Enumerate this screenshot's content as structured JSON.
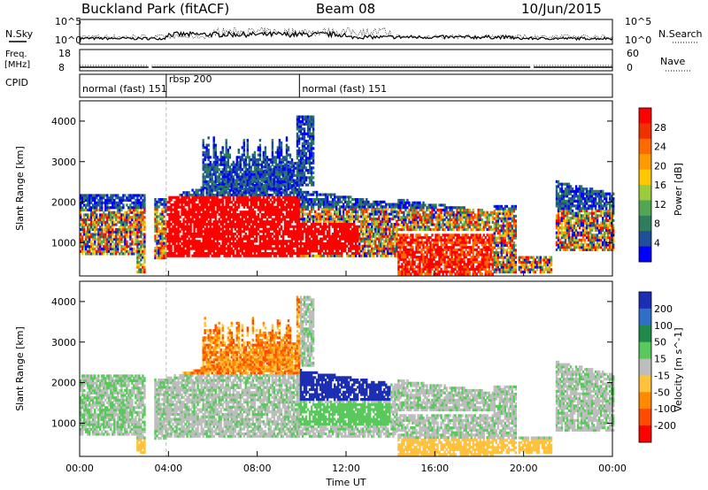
{
  "header": {
    "station": "Buckland Park (fitACF)",
    "beam": "Beam 08",
    "date": "10/Jun/2015"
  },
  "panels": {
    "nsky_label": "N.Sky",
    "nsearch_label": "N.Search",
    "freq_label_1": "Freq.",
    "freq_label_2": "[MHz]",
    "nave_label": "Nave",
    "cpid_label": "CPID"
  },
  "chart_data": [
    {
      "type": "line",
      "name": "noise",
      "left_axis": {
        "ticks": [
          "10^5",
          "10^0"
        ]
      },
      "right_axis": {
        "ticks": [
          "10^5",
          "10^0"
        ]
      }
    },
    {
      "type": "line",
      "name": "frequency",
      "left_axis": {
        "ticks": [
          "18",
          "8"
        ],
        "ylim": [
          8,
          18
        ]
      },
      "right_axis": {
        "ticks": [
          "60",
          "0"
        ],
        "ylim": [
          0,
          60
        ]
      }
    },
    {
      "type": "table",
      "name": "cpid",
      "segments": [
        {
          "label": "normal (fast) 151",
          "start_hour": 0.0,
          "end_hour": 3.9
        },
        {
          "label": "rbsp 200",
          "start_hour": 3.9,
          "end_hour": 9.9
        },
        {
          "label": "normal (fast) 151",
          "start_hour": 9.9,
          "end_hour": 24.0
        }
      ]
    },
    {
      "type": "heatmap",
      "name": "power",
      "ylabel": "Slant Range [km]",
      "yticks": [
        "4000",
        "3000",
        "2000",
        "1000"
      ],
      "ylim": [
        180,
        4500
      ],
      "colorbar": {
        "label": "Power [dB]",
        "ticks": [
          "28",
          "24",
          "20",
          "16",
          "12",
          "8",
          "4"
        ],
        "colors": [
          "#ff0000",
          "#f03000",
          "#ff6a00",
          "#ff9a00",
          "#ffc800",
          "#9ccb3c",
          "#52a852",
          "#2e7d5b",
          "#1f4f99",
          "#0000ff"
        ]
      }
    },
    {
      "type": "heatmap",
      "name": "velocity",
      "ylabel": "Slant Range [km]",
      "yticks": [
        "4000",
        "3000",
        "2000",
        "1000"
      ],
      "ylim": [
        180,
        4500
      ],
      "xlabel": "Time UT",
      "xticks": [
        "00:00",
        "04:00",
        "08:00",
        "12:00",
        "16:00",
        "20:00",
        "00:00"
      ],
      "xlim_hours": [
        0,
        24
      ],
      "colorbar": {
        "label": "Velocity [m s^-1]",
        "ticks": [
          "200",
          "100",
          "50",
          "15",
          "-15",
          "-50",
          "-100",
          "-200"
        ],
        "colors": [
          "#1c2fb4",
          "#2f70c6",
          "#1f8a4a",
          "#58c95a",
          "#bdbdbd",
          "#ffc23a",
          "#ff8a00",
          "#ff4a00",
          "#ff0000"
        ]
      }
    }
  ]
}
